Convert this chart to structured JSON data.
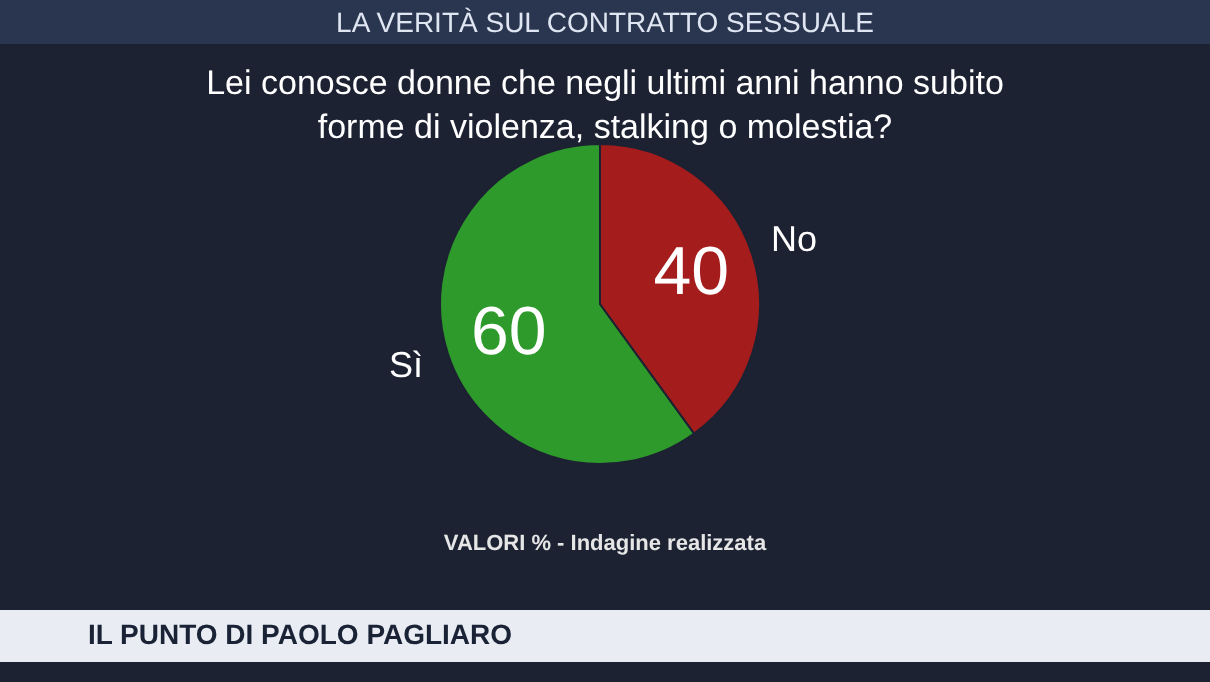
{
  "chart_data": {
    "type": "pie",
    "subtitle": "LA VERITÀ SUL CONTRATTO SESSUALE",
    "title": "Lei conosce donne che negli ultimi anni hanno subito forme di violenza, stalking o molestia?",
    "categories": [
      "Sì",
      "No"
    ],
    "values": [
      60,
      40
    ],
    "colors": [
      "#2f9a2c",
      "#a51c1c"
    ],
    "data_labels": true,
    "annotations": [
      "VALORI % - Indagine realizzata",
      "IL PUNTO DI PAOLO PAGLIARO"
    ]
  }
}
